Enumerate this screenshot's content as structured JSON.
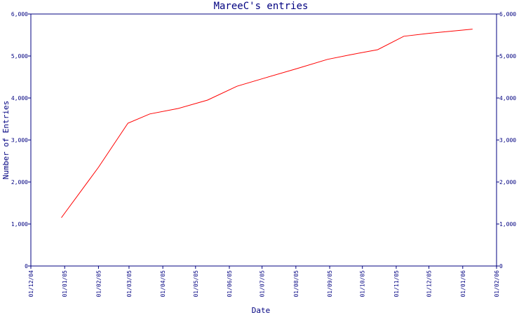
{
  "chart_data": {
    "type": "line",
    "title": "MareeC's entries",
    "xlabel": "Date",
    "ylabel": "Number of Entries",
    "ylim": [
      0,
      6000
    ],
    "y_ticks": [
      0,
      1000,
      2000,
      3000,
      4000,
      5000,
      6000
    ],
    "y_tick_labels": [
      "0",
      "1,000",
      "2,000",
      "3,000",
      "4,000",
      "5,000",
      "6,000"
    ],
    "x_range": [
      "2004-12-01",
      "2006-02-01"
    ],
    "x_ticks": [
      "2004-12-01",
      "2005-01-01",
      "2005-02-01",
      "2005-03-01",
      "2005-04-01",
      "2005-05-01",
      "2005-06-01",
      "2005-07-01",
      "2005-08-01",
      "2005-09-01",
      "2005-10-01",
      "2005-11-01",
      "2005-12-01",
      "2006-01-01",
      "2006-02-01"
    ],
    "x_tick_labels": [
      "01/12/04",
      "01/01/05",
      "01/02/05",
      "01/03/05",
      "01/04/05",
      "01/05/05",
      "01/06/05",
      "01/07/05",
      "01/08/05",
      "01/09/05",
      "01/10/05",
      "01/11/05",
      "01/12/05",
      "01/01/06",
      "01/02/06"
    ],
    "right_axis": true,
    "grid": false,
    "colors": {
      "line": "#ff0000",
      "axis": "#000080",
      "text": "#000080"
    },
    "series": [
      {
        "x": [
          "2004-12-29",
          "2005-02-01",
          "2005-02-28",
          "2005-03-20",
          "2005-04-15",
          "2005-05-12",
          "2005-06-08",
          "2005-07-04",
          "2005-08-02",
          "2005-08-30",
          "2005-09-20",
          "2005-10-15",
          "2005-11-08",
          "2005-12-01",
          "2006-01-10"
        ],
        "values": [
          1150,
          2350,
          3400,
          3620,
          3750,
          3950,
          4280,
          4480,
          4700,
          4920,
          5030,
          5150,
          5470,
          5540,
          5640
        ]
      }
    ]
  }
}
